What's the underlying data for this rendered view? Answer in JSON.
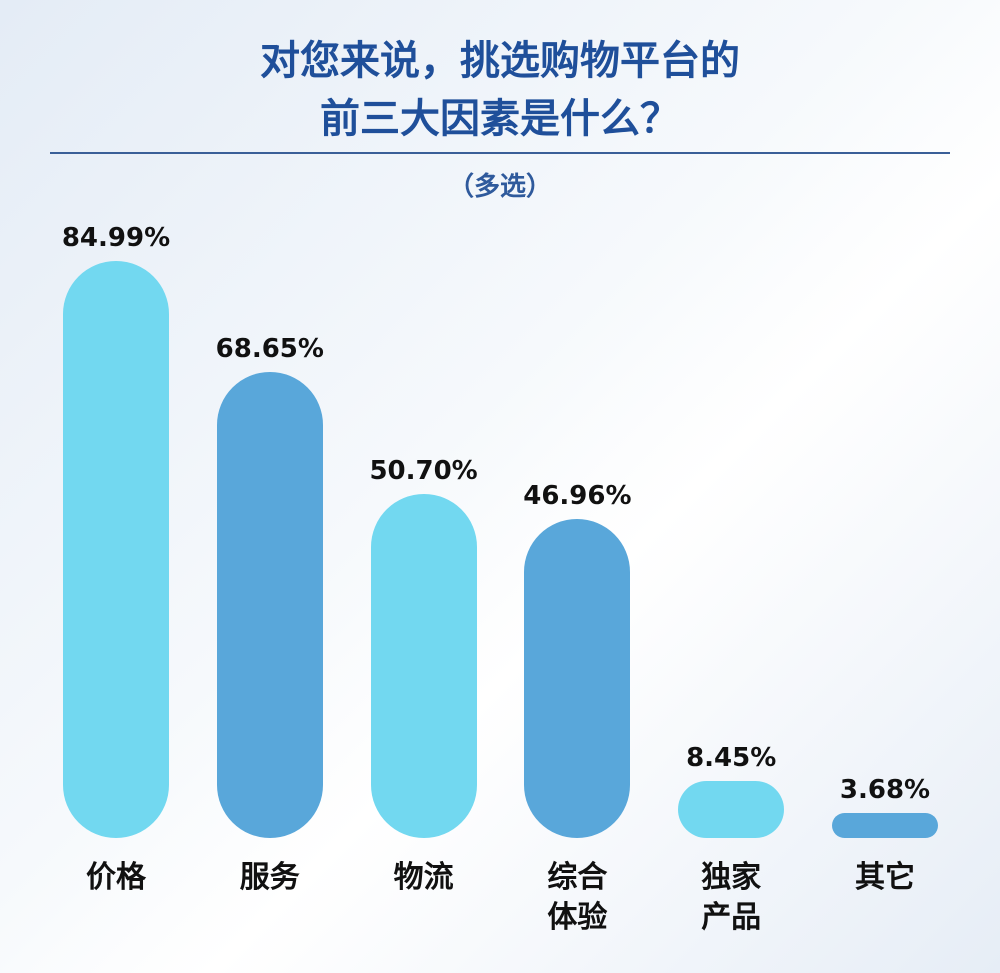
{
  "chart_data": {
    "type": "bar",
    "title": [
      "对您来说，挑选购物平台的",
      "前三大因素是什么？"
    ],
    "subtitle": "（多选）",
    "categories": [
      "价格",
      "服务",
      "物流",
      "综合体验",
      "独家产品",
      "其它"
    ],
    "values": [
      84.99,
      68.65,
      50.7,
      46.96,
      8.45,
      3.68
    ],
    "value_labels": [
      "84.99%",
      "68.65%",
      "50.70%",
      "46.96%",
      "8.45%",
      "3.68%"
    ],
    "colors": [
      "#72d8f0",
      "#59a7da",
      "#72d8f0",
      "#59a7da",
      "#72d8f0",
      "#59a7da"
    ]
  }
}
